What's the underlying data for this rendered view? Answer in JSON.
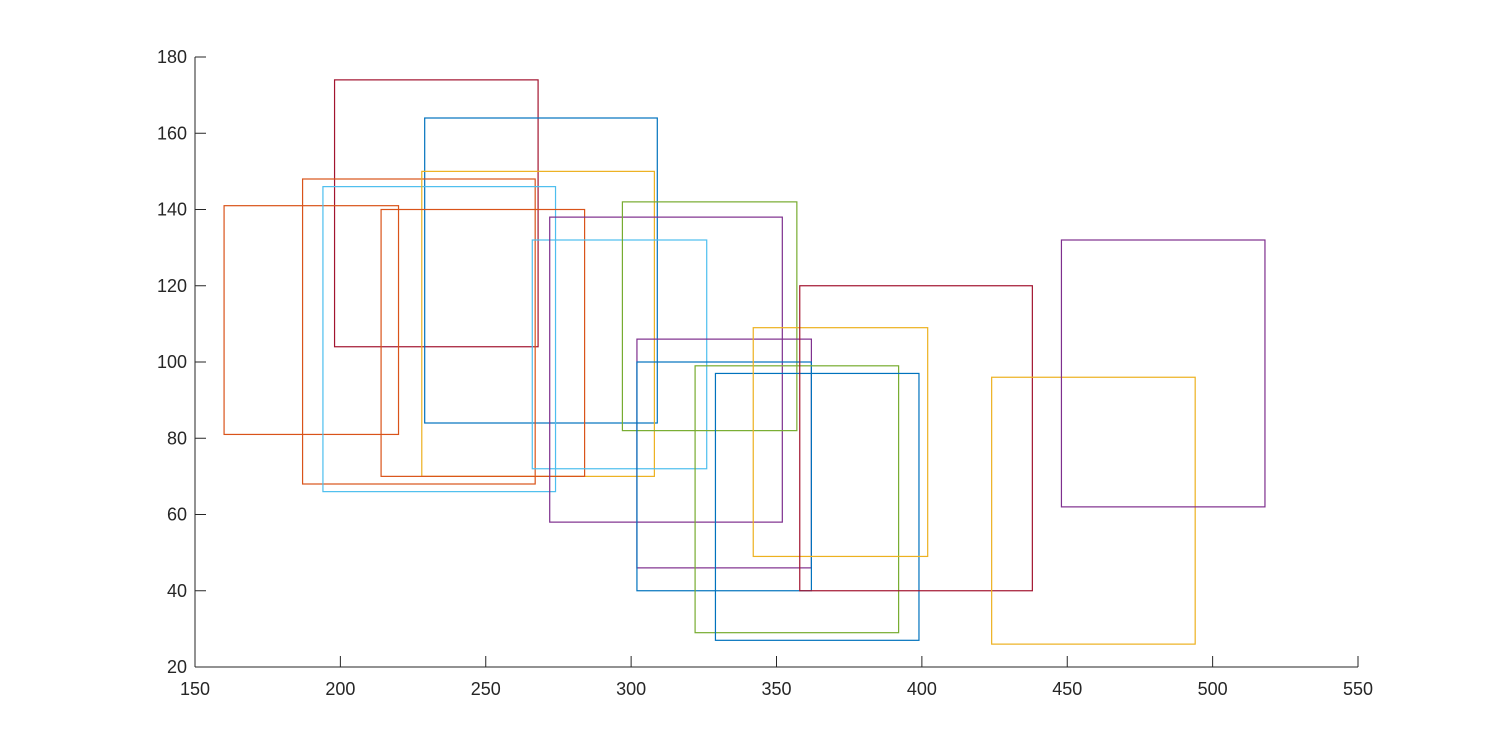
{
  "chart_data": {
    "type": "rectangles",
    "title": "",
    "xlabel": "",
    "ylabel": "",
    "xlim": [
      150,
      550
    ],
    "ylim": [
      20,
      180
    ],
    "x_ticks": [
      150,
      200,
      250,
      300,
      350,
      400,
      450,
      500,
      550
    ],
    "y_ticks": [
      20,
      40,
      60,
      80,
      100,
      120,
      140,
      160,
      180
    ],
    "grid": false,
    "legend": "none",
    "rectangles": [
      {
        "x": 198,
        "y": 104,
        "width": 70,
        "height": 70,
        "color": "#A2142F"
      },
      {
        "x": 229,
        "y": 84,
        "width": 80,
        "height": 80,
        "color": "#0072BD"
      },
      {
        "x": 160,
        "y": 81,
        "width": 60,
        "height": 60,
        "color": "#D95319"
      },
      {
        "x": 187,
        "y": 68,
        "width": 80,
        "height": 80,
        "color": "#D95319"
      },
      {
        "x": 194,
        "y": 66,
        "width": 80,
        "height": 80,
        "color": "#4DBEEE"
      },
      {
        "x": 228,
        "y": 70,
        "width": 80,
        "height": 80,
        "color": "#EDB120"
      },
      {
        "x": 214,
        "y": 70,
        "width": 70,
        "height": 70,
        "color": "#D95319"
      },
      {
        "x": 266,
        "y": 72,
        "width": 60,
        "height": 60,
        "color": "#4DBEEE"
      },
      {
        "x": 272,
        "y": 58,
        "width": 80,
        "height": 80,
        "color": "#7E2F8E"
      },
      {
        "x": 297,
        "y": 82,
        "width": 60,
        "height": 60,
        "color": "#77AC30"
      },
      {
        "x": 302,
        "y": 46,
        "width": 60,
        "height": 60,
        "color": "#7E2F8E"
      },
      {
        "x": 302,
        "y": 40,
        "width": 60,
        "height": 60,
        "color": "#0072BD"
      },
      {
        "x": 322,
        "y": 29,
        "width": 70,
        "height": 70,
        "color": "#77AC30"
      },
      {
        "x": 329,
        "y": 27,
        "width": 70,
        "height": 70,
        "color": "#0072BD"
      },
      {
        "x": 342,
        "y": 49,
        "width": 60,
        "height": 60,
        "color": "#EDB120"
      },
      {
        "x": 358,
        "y": 40,
        "width": 80,
        "height": 80,
        "color": "#A2142F"
      },
      {
        "x": 424,
        "y": 26,
        "width": 70,
        "height": 70,
        "color": "#EDB120"
      },
      {
        "x": 448,
        "y": 62,
        "width": 70,
        "height": 70,
        "color": "#7E2F8E"
      }
    ]
  }
}
